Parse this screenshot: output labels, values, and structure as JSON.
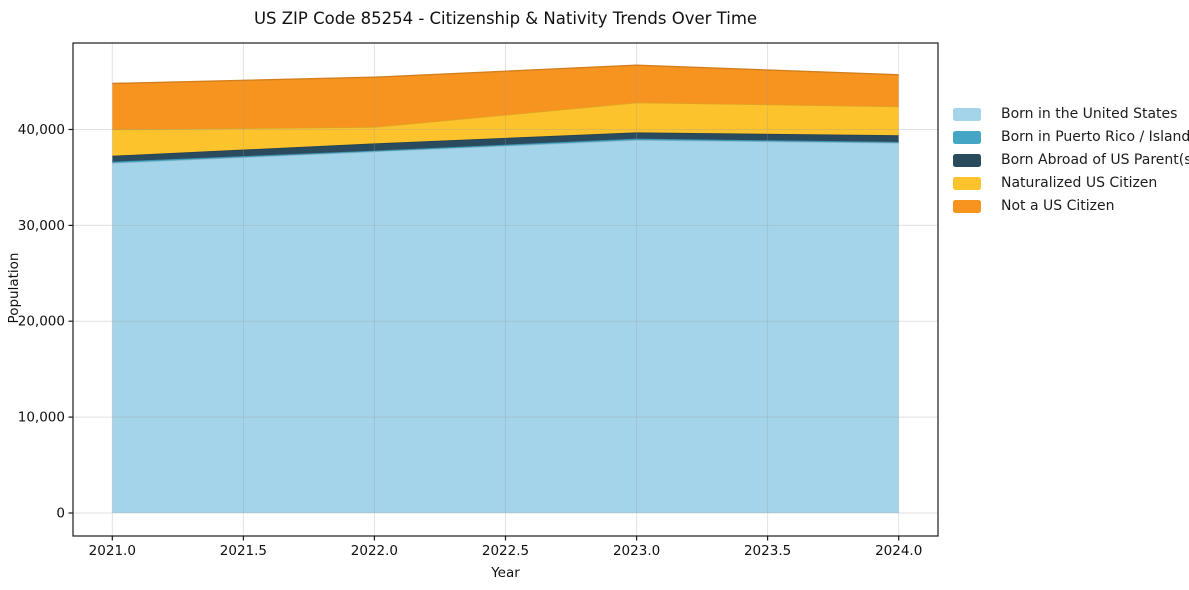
{
  "chart": {
    "title": "US ZIP Code 85254 - Citizenship & Nativity Trends Over Time",
    "xlabel": "Year",
    "ylabel": "Population"
  },
  "chart_data": {
    "type": "area",
    "stacked": true,
    "title": "US ZIP Code 85254 - Citizenship & Nativity Trends Over Time",
    "xlabel": "Year",
    "ylabel": "Population",
    "x": [
      2021,
      2022,
      2023,
      2024
    ],
    "series": [
      {
        "name": "Born in the United States",
        "color": "#a4d4ea",
        "values": [
          36500,
          37700,
          38900,
          38600
        ]
      },
      {
        "name": "Born in Puerto Rico / Islands",
        "color": "#45a5c4",
        "values": [
          150,
          100,
          150,
          100
        ]
      },
      {
        "name": "Born Abroad of US Parent(s)",
        "color": "#2a4a5e",
        "values": [
          600,
          750,
          650,
          700
        ]
      },
      {
        "name": "Naturalized US Citizen",
        "color": "#fcc32c",
        "values": [
          2750,
          1700,
          3100,
          3000
        ]
      },
      {
        "name": "Not a US Citizen",
        "color": "#f79420",
        "values": [
          4800,
          5200,
          3900,
          3300
        ]
      }
    ],
    "totals": [
      44800,
      45450,
      46700,
      45700
    ],
    "xticks": {
      "values": [
        2021.0,
        2021.5,
        2022.0,
        2022.5,
        2023.0,
        2023.5,
        2024.0
      ],
      "labels": [
        "2021.0",
        "2021.5",
        "2022.0",
        "2022.5",
        "2023.0",
        "2023.5",
        "2024.0"
      ]
    },
    "yticks": {
      "values": [
        0,
        10000,
        20000,
        30000,
        40000
      ],
      "labels": [
        "0",
        "10,000",
        "20,000",
        "30,000",
        "40,000"
      ]
    },
    "xlim": [
      2020.85,
      2024.15
    ],
    "ylim": [
      -2400,
      49020
    ],
    "grid": true,
    "legend_position": "right-outside"
  },
  "colors": {
    "background": "#ffffff",
    "grid": "#999999",
    "spine": "#1b1b1b",
    "text": "#111111"
  }
}
